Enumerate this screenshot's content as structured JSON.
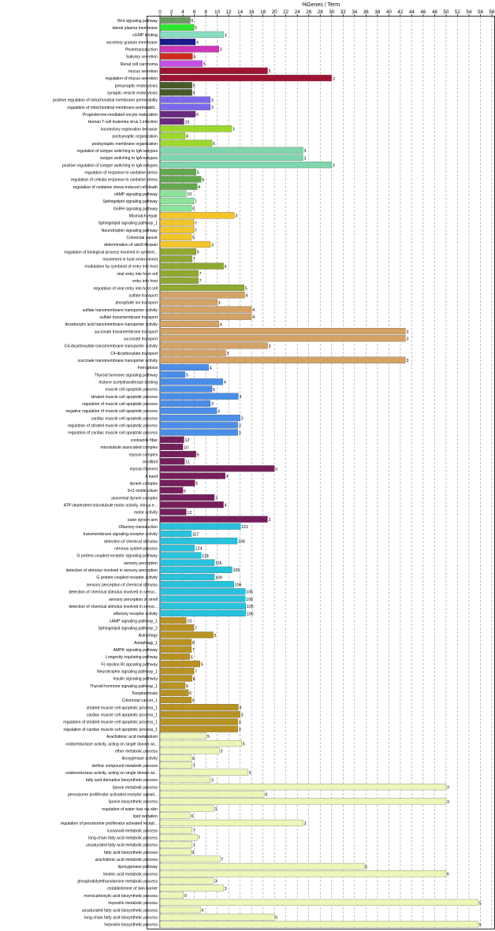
{
  "chart_data": {
    "type": "bar",
    "orientation": "horizontal",
    "xlabel": "%Genes / Term",
    "x_axis_position": "top",
    "xlim": [
      0,
      58
    ],
    "xticks": [
      0,
      2,
      4,
      6,
      8,
      10,
      12,
      14,
      16,
      18,
      20,
      22,
      24,
      26,
      28,
      30,
      32,
      34,
      36,
      38,
      40,
      42,
      44,
      46,
      48,
      50,
      52,
      54,
      56,
      58
    ],
    "grid": "vertical dashed",
    "legend": "none",
    "groups": [
      {
        "color": "#6d9960",
        "bars": [
          {
            "label": "Wnt signaling pathway",
            "value": 5.3,
            "count": "6"
          }
        ]
      },
      {
        "color": "#2ee82e",
        "bars": [
          {
            "label": "lateral plasma membrane",
            "value": 5.9,
            "count": "5"
          }
        ]
      },
      {
        "color": "#88dcc2",
        "bars": [
          {
            "label": "cGMP binding",
            "value": 11.1,
            "count": "3"
          }
        ]
      },
      {
        "color": "#1a1a8c",
        "bars": [
          {
            "label": "secretory granule membrane",
            "value": 6.2,
            "count": "4"
          }
        ]
      },
      {
        "color": "#cc37b8",
        "bars": [
          {
            "label": "Phototransduction",
            "value": 10.3,
            "count": "3"
          }
        ]
      },
      {
        "color": "#cf2a1e",
        "bars": [
          {
            "label": "Salivary secretion",
            "value": 5.7,
            "count": "5"
          }
        ]
      },
      {
        "color": "#c451e6",
        "bars": [
          {
            "label": "Renal cell carcinoma",
            "value": 7.4,
            "count": "5"
          }
        ]
      },
      {
        "color": "#9d1433",
        "bars": [
          {
            "label": "mucus secretion",
            "value": 18.8,
            "count": "3"
          },
          {
            "label": "regulation of mucus secretion",
            "value": 30.0,
            "count": "3"
          }
        ]
      },
      {
        "color": "#485a2a",
        "bars": [
          {
            "label": "presynaptic endocytosis",
            "value": 5.6,
            "count": "5"
          },
          {
            "label": "synaptic vesicle endocytosis",
            "value": 5.6,
            "count": "5"
          }
        ]
      },
      {
        "color": "#7b68ee",
        "bars": [
          {
            "label": "positive regulation of mitochondrial membrane permeability",
            "value": 8.8,
            "count": "3"
          },
          {
            "label": "regulation of mitochondrial membrane permeabili...",
            "value": 8.8,
            "count": "3"
          }
        ]
      },
      {
        "color": "#6a2a7e",
        "bars": [
          {
            "label": "Progesterone-mediated oocyte maturation",
            "value": 6.2,
            "count": "6"
          },
          {
            "label": "Human T-cell leukemia virus 1 infection",
            "value": 4.2,
            "count": "10"
          }
        ]
      },
      {
        "color": "#9bd82c",
        "bars": [
          {
            "label": "locomotory exploration behavior",
            "value": 12.5,
            "count": "3"
          },
          {
            "label": "postsynaptic organization",
            "value": 4.4,
            "count": "8"
          },
          {
            "label": "postsynaptic membrane organization",
            "value": 9.1,
            "count": "6"
          }
        ]
      },
      {
        "color": "#7fd6ad",
        "bars": [
          {
            "label": "regulation of isotype switching to IgA isotypes",
            "value": 25.0,
            "count": "3"
          },
          {
            "label": "isotype switching to IgA isotypes",
            "value": 25.0,
            "count": "3"
          },
          {
            "label": "positive regulation of isotype switching to IgA isotypes",
            "value": 30.0,
            "count": "3"
          }
        ]
      },
      {
        "color": "#63a84e",
        "bars": [
          {
            "label": "regulation of response to oxidative stress",
            "value": 6.3,
            "count": "5"
          },
          {
            "label": "regulation of cellular response to oxidative stress",
            "value": 7.2,
            "count": "5"
          },
          {
            "label": "regulation of oxidative stress-induced cell death",
            "value": 6.5,
            "count": "4"
          }
        ]
      },
      {
        "color": "#8ce49b",
        "bars": [
          {
            "label": "cAMP signaling pathway",
            "value": 4.6,
            "count": "10"
          },
          {
            "label": "Sphingolipid signaling pathway",
            "value": 5.9,
            "count": "7"
          },
          {
            "label": "GnRH signaling pathway",
            "value": 5.5,
            "count": "5"
          }
        ]
      },
      {
        "color": "#f4c52a",
        "bars": [
          {
            "label": "Mismatch repair",
            "value": 13.0,
            "count": "3"
          },
          {
            "label": "Sphingolipid signaling pathway_1",
            "value": 5.9,
            "count": "7"
          },
          {
            "label": "Neurotrophin signaling pathway",
            "value": 5.9,
            "count": "7"
          },
          {
            "label": "Colorectal cancer",
            "value": 5.5,
            "count": "5"
          },
          {
            "label": "determination of adult lifespan",
            "value": 8.8,
            "count": "3"
          }
        ]
      },
      {
        "color": "#8fa832",
        "bars": [
          {
            "label": "regulation of biological process involved in symbiot...",
            "value": 6.3,
            "count": "5"
          },
          {
            "label": "movement in host environment",
            "value": 5.6,
            "count": "7"
          },
          {
            "label": "modulation by symbiont of entry into host",
            "value": 11.1,
            "count": "5"
          },
          {
            "label": "viral entry into host cell",
            "value": 6.7,
            "count": "7"
          },
          {
            "label": "entry into host",
            "value": 6.7,
            "count": "7"
          },
          {
            "label": "regulation of viral entry into host cell",
            "value": 14.7,
            "count": "5"
          }
        ]
      },
      {
        "color": "#d3a266",
        "bars": [
          {
            "label": "sulfate transport",
            "value": 14.8,
            "count": "4"
          },
          {
            "label": "phosphate ion transport",
            "value": 10.0,
            "count": "3"
          },
          {
            "label": "sulfate transmembrane transporter activity",
            "value": 16.0,
            "count": "4"
          },
          {
            "label": "sulfate transmembrane transport",
            "value": 16.0,
            "count": "4"
          },
          {
            "label": "dicarboxylic acid transmembrane transporter activity",
            "value": 10.3,
            "count": "4"
          },
          {
            "label": "succinate transmembrane transport",
            "value": 42.9,
            "count": "3"
          },
          {
            "label": "succinate transport",
            "value": 42.9,
            "count": "3"
          },
          {
            "label": "C4-dicarboxylate transmembrane transporter activity",
            "value": 18.8,
            "count": "3"
          },
          {
            "label": "C4-dicarboxylate transport",
            "value": 11.5,
            "count": "3"
          },
          {
            "label": "succinate transmembrane transporter activity",
            "value": 42.9,
            "count": "3"
          }
        ]
      },
      {
        "color": "#4a8ee8",
        "bars": [
          {
            "label": "Ferroptosis",
            "value": 8.5,
            "count": "4"
          },
          {
            "label": "Thyroid hormone signaling pathway",
            "value": 4.4,
            "count": "5"
          },
          {
            "label": "histone acetyltransferase binding",
            "value": 11.0,
            "count": "4"
          },
          {
            "label": "muscle cell apoptotic process",
            "value": 9.1,
            "count": "5"
          },
          {
            "label": "striated muscle cell apoptotic process",
            "value": 13.7,
            "count": "3"
          },
          {
            "label": "regulation of muscle cell apoptotic process",
            "value": 8.8,
            "count": "3"
          },
          {
            "label": "negative regulation of muscle cell apoptotic process",
            "value": 9.9,
            "count": "3"
          },
          {
            "label": "cardiac muscle cell apoptotic process",
            "value": 14.0,
            "count": "3"
          },
          {
            "label": "regulation of striated muscle cell apoptotic process",
            "value": 13.6,
            "count": "3"
          },
          {
            "label": "regulation of cardiac muscle cell apoptotic process",
            "value": 13.6,
            "count": "3"
          }
        ]
      },
      {
        "color": "#761e5c",
        "bars": [
          {
            "label": "contractile fiber",
            "value": 4.2,
            "count": "12"
          },
          {
            "label": "microtubule associated complex",
            "value": 4.0,
            "count": "10"
          },
          {
            "label": "myosin complex",
            "value": 6.3,
            "count": "6"
          },
          {
            "label": "myofibril",
            "value": 4.3,
            "count": "11"
          },
          {
            "label": "myosin filament",
            "value": 20.0,
            "count": "5"
          },
          {
            "label": "A band",
            "value": 11.4,
            "count": "4"
          },
          {
            "label": "dynein complex",
            "value": 6.1,
            "count": "5"
          },
          {
            "label": "9+2 motile cilium",
            "value": 4.0,
            "count": "6"
          },
          {
            "label": "axonemal dynein complex",
            "value": 9.5,
            "count": "3"
          },
          {
            "label": "ATP-dependent microtubule motor activity, minus-e...",
            "value": 11.1,
            "count": "4"
          },
          {
            "label": "motor activity",
            "value": 4.6,
            "count": "12"
          },
          {
            "label": "outer dynein arm",
            "value": 18.8,
            "count": "3"
          }
        ]
      },
      {
        "color": "#28c2dc",
        "bars": [
          {
            "label": "Olfactory transduction",
            "value": 14.1,
            "count": "121"
          },
          {
            "label": "transmembrane signaling receptor activity",
            "value": 5.5,
            "count": "117"
          },
          {
            "label": "detection of chemical stimulus",
            "value": 13.5,
            "count": "106"
          },
          {
            "label": "nervous system process",
            "value": 6.0,
            "count": "124"
          },
          {
            "label": "G protein-coupled receptor signaling pathway",
            "value": 7.2,
            "count": "118"
          },
          {
            "label": "sensory perception",
            "value": 9.5,
            "count": "116"
          },
          {
            "label": "detection of stimulus involved in sensory perception",
            "value": 12.6,
            "count": "105"
          },
          {
            "label": "G protein-coupled receptor activity",
            "value": 9.5,
            "count": "109"
          },
          {
            "label": "sensory perception of chemical stimulus",
            "value": 12.9,
            "count": "106"
          },
          {
            "label": "detection of chemical stimulus involved in senso...",
            "value": 14.9,
            "count": "105"
          },
          {
            "label": "sensory perception of smell",
            "value": 14.9,
            "count": "106"
          },
          {
            "label": "detection of chemical stimulus involved in senso...",
            "value": 15.0,
            "count": "105"
          },
          {
            "label": "olfactory receptor activity",
            "value": 15.0,
            "count": "105"
          }
        ]
      },
      {
        "color": "#b89222",
        "bars": [
          {
            "label": "cAMP signaling pathway_1",
            "value": 4.6,
            "count": "10"
          },
          {
            "label": "Sphingolipid signaling pathway_2",
            "value": 5.9,
            "count": "7"
          },
          {
            "label": "Autophagy",
            "value": 9.3,
            "count": "5"
          },
          {
            "label": "Autophagy_1",
            "value": 5.5,
            "count": "8"
          },
          {
            "label": "AMPK signaling pathway",
            "value": 5.5,
            "count": "7"
          },
          {
            "label": "Longevity regulating pathway",
            "value": 5.2,
            "count": "5"
          },
          {
            "label": "Fc epsilon RI signaling pathway",
            "value": 7.0,
            "count": "5"
          },
          {
            "label": "Neurotrophin signaling pathway_1",
            "value": 5.9,
            "count": "7"
          },
          {
            "label": "Insulin signaling pathway",
            "value": 5.6,
            "count": "8"
          },
          {
            "label": "Thyroid hormone signaling pathway_1",
            "value": 4.4,
            "count": "6"
          },
          {
            "label": "Toxoplasmosis",
            "value": 5.0,
            "count": "6"
          },
          {
            "label": "Colorectal cancer_1",
            "value": 5.5,
            "count": "5"
          },
          {
            "label": "striated muscle cell apoptotic process_1",
            "value": 13.7,
            "count": "3"
          },
          {
            "label": "cardiac muscle cell apoptotic process_1",
            "value": 14.0,
            "count": "3"
          },
          {
            "label": "regulation of striated muscle cell apoptotic process_1",
            "value": 13.6,
            "count": "3"
          },
          {
            "label": "regulation of cardiac muscle cell apoptotic process_1",
            "value": 13.6,
            "count": "3"
          }
        ]
      },
      {
        "color": "#ecf6b8",
        "bars": [
          {
            "label": "Arachidonic acid metabolism",
            "value": 8.1,
            "count": "5"
          },
          {
            "label": "oxidoreductase activity, acting on single donors wi...",
            "value": 14.3,
            "count": "5"
          },
          {
            "label": "ether metabolic process",
            "value": 10.4,
            "count": "3"
          },
          {
            "label": "dioxygenase activity",
            "value": 5.5,
            "count": "6"
          },
          {
            "label": "olefinic compound metabolic process",
            "value": 5.6,
            "count": "7"
          },
          {
            "label": "oxidoreductase activity, acting on single donors wi...",
            "value": 15.4,
            "count": "5"
          },
          {
            "label": "fatty acid derivative biosynthetic process",
            "value": 8.8,
            "count": "3"
          },
          {
            "label": "lipoxin metabolic process",
            "value": 50.0,
            "count": "3"
          },
          {
            "label": "peroxisome proliferator activated receptor signali...",
            "value": 18.2,
            "count": "4"
          },
          {
            "label": "lipoxin biosynthetic process",
            "value": 50.0,
            "count": "3"
          },
          {
            "label": "regulation of water loss via skin",
            "value": 9.4,
            "count": "3"
          },
          {
            "label": "lipid oxidation",
            "value": 5.3,
            "count": "6"
          },
          {
            "label": "regulation of peroxisome proliferator activated recept...",
            "value": 25.0,
            "count": "3"
          },
          {
            "label": "icosanoid metabolic process",
            "value": 5.6,
            "count": "7"
          },
          {
            "label": "long-chain fatty acid metabolic process",
            "value": 6.5,
            "count": "7"
          },
          {
            "label": "unsaturated fatty acid metabolic process",
            "value": 5.6,
            "count": "7"
          },
          {
            "label": "fatty acid biosynthetic process",
            "value": 5.4,
            "count": "9"
          },
          {
            "label": "arachidonic acid metabolic process",
            "value": 10.5,
            "count": "7"
          },
          {
            "label": "lipoxygenase pathway",
            "value": 35.7,
            "count": "5"
          },
          {
            "label": "linoleic acid metabolic process",
            "value": 50.0,
            "count": "6"
          },
          {
            "label": "phosphatidylethanolamine metabolic process",
            "value": 9.4,
            "count": "3"
          },
          {
            "label": "establishment of skin barrier",
            "value": 11.1,
            "count": "3"
          },
          {
            "label": "monocarboxylic acid biosynthetic process",
            "value": 4.1,
            "count": "9"
          },
          {
            "label": "hepoxilin metabolic process",
            "value": 55.6,
            "count": "5"
          },
          {
            "label": "unsaturated fatty acid biosynthetic process",
            "value": 7.1,
            "count": "6"
          },
          {
            "label": "long-chain fatty acid biosynthetic process",
            "value": 20.0,
            "count": "5"
          },
          {
            "label": "hepoxilin biosynthetic process",
            "value": 55.6,
            "count": "5"
          }
        ]
      }
    ]
  }
}
